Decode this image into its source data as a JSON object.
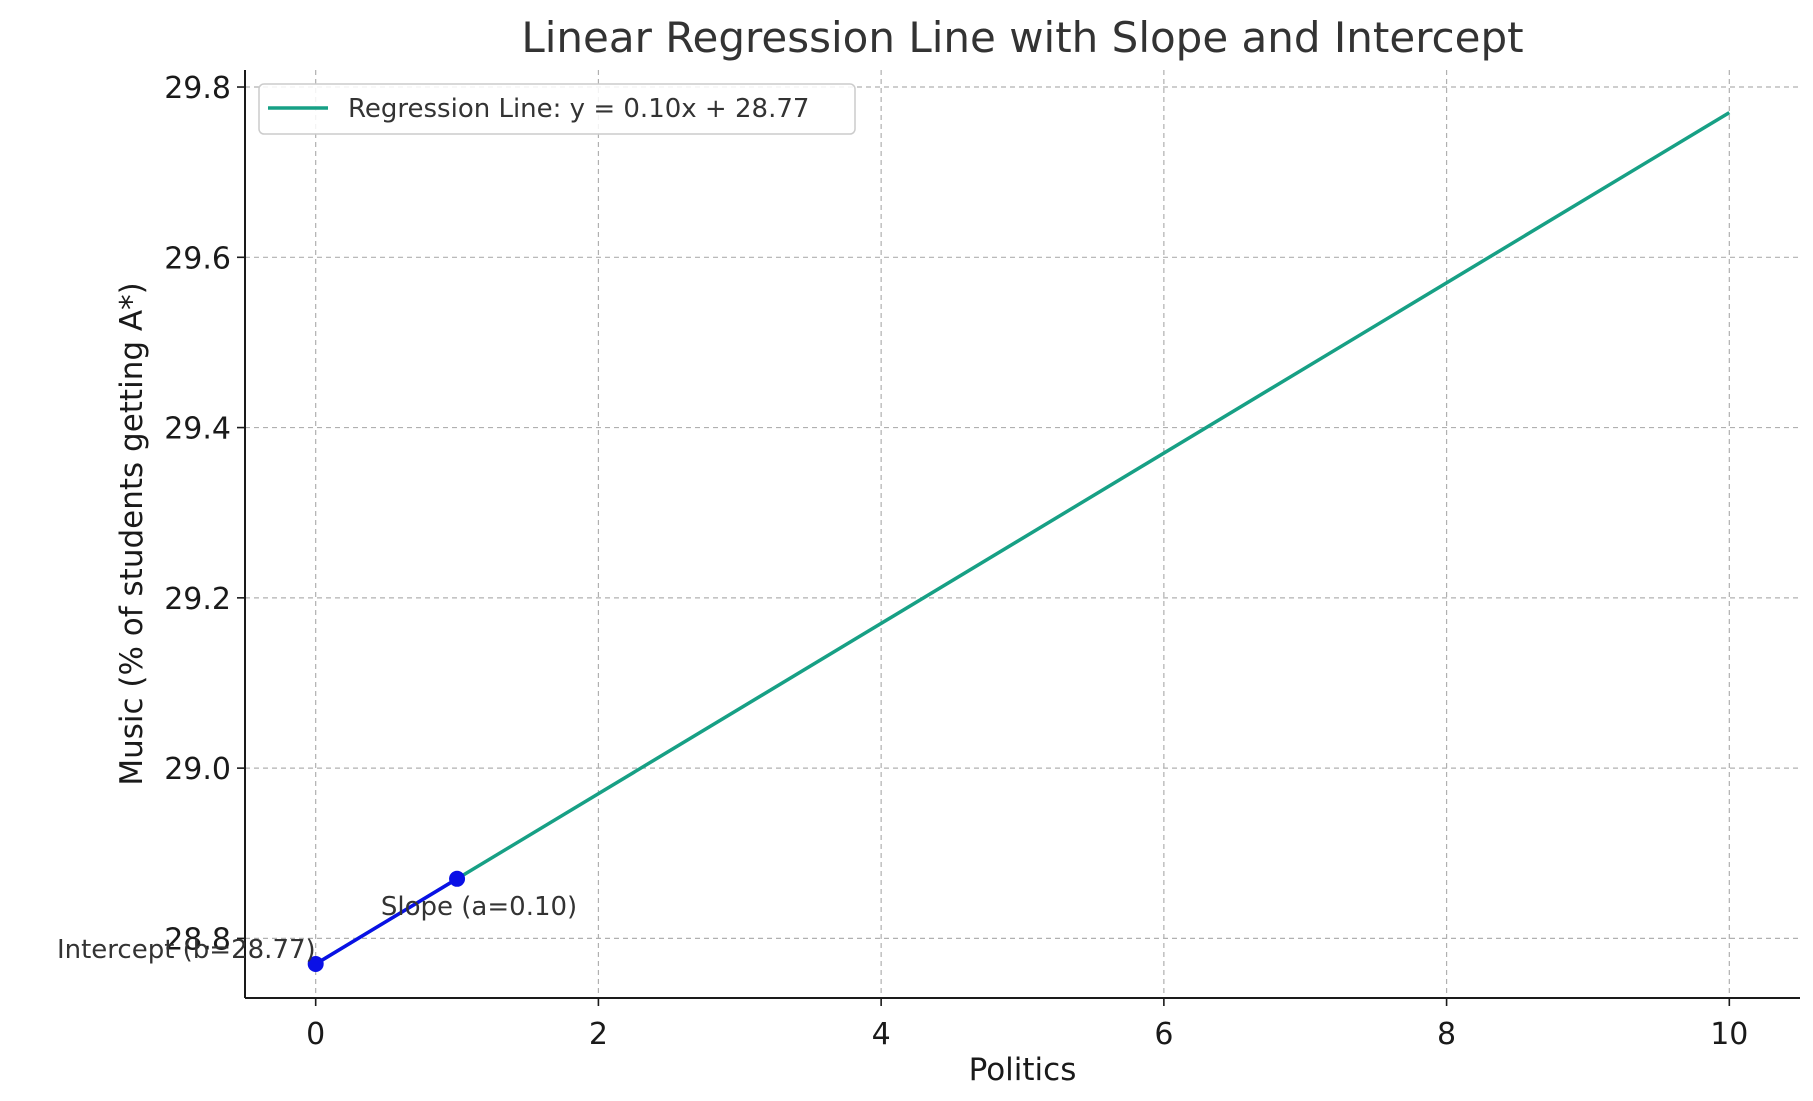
{
  "chart_data": {
    "type": "line",
    "title": "Linear Regression Line with Slope and Intercept",
    "xlabel": "Politics",
    "ylabel": "Music (% of students getting A*)",
    "xlim": [
      -0.5,
      10.5
    ],
    "ylim": [
      28.73,
      29.82
    ],
    "xticks": [
      0,
      2,
      4,
      6,
      8,
      10
    ],
    "xtick_labels": [
      "0",
      "2",
      "4",
      "6",
      "8",
      "10"
    ],
    "yticks": [
      28.8,
      29.0,
      29.2,
      29.4,
      29.6,
      29.8
    ],
    "ytick_labels": [
      "28.8",
      "29.0",
      "29.2",
      "29.4",
      "29.6",
      "29.8"
    ],
    "grid": true,
    "legend": {
      "placement": "upper-left",
      "entries": [
        "Regression Line: y = 0.10x + 28.77"
      ]
    },
    "series": [
      {
        "name": "Regression Line: y = 0.10x + 28.77",
        "color": "#17a085",
        "x": [
          0,
          10
        ],
        "y": [
          28.77,
          29.77
        ]
      },
      {
        "color": "#0a10e6",
        "x": [
          0,
          1
        ],
        "y": [
          28.77,
          28.87
        ],
        "markers": true
      }
    ],
    "annotations": [
      {
        "text": "Intercept (b=28.77)",
        "x": 0,
        "y": 28.77
      },
      {
        "text": "Slope (a=0.10)",
        "x": 1,
        "y": 28.87
      }
    ]
  }
}
